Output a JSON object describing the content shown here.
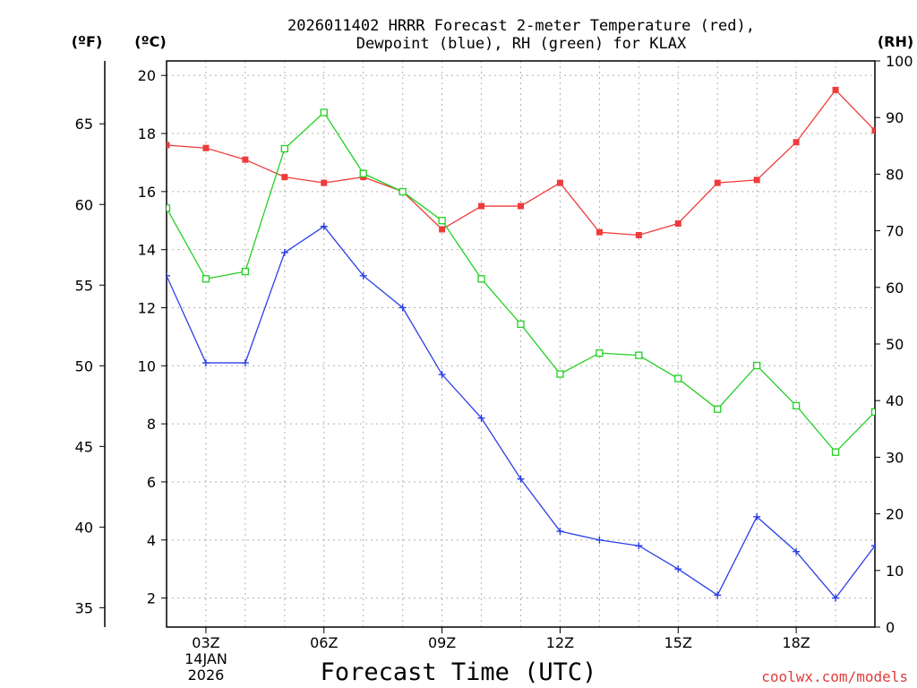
{
  "chart_data": {
    "type": "line",
    "title_line1": "2026011402 HRRR Forecast 2-meter Temperature (red),",
    "title_line2": "Dewpoint (blue), RH (green) for KLAX",
    "xlabel": "Forecast Time (UTC)",
    "credit": "coolwx.com/models",
    "x_tick_labels": [
      "03Z",
      "06Z",
      "09Z",
      "12Z",
      "15Z",
      "18Z"
    ],
    "x_tick_hours": [
      3,
      6,
      9,
      12,
      15,
      18
    ],
    "x_sublabel": [
      "14JAN",
      "2026"
    ],
    "xlim": [
      2,
      20
    ],
    "x_hours": [
      2,
      3,
      4,
      5,
      6,
      7,
      8,
      9,
      10,
      11,
      12,
      13,
      14,
      15,
      16,
      17,
      18,
      19,
      20
    ],
    "y_left_celsius": {
      "unit_label": "(ºC)",
      "ylim": [
        1,
        20.5
      ],
      "ticks": [
        2,
        4,
        6,
        8,
        10,
        12,
        14,
        16,
        18,
        20
      ]
    },
    "y_left_fahrenheit": {
      "unit_label": "(ºF)",
      "ticks": [
        35,
        40,
        45,
        50,
        55,
        60,
        65
      ]
    },
    "y_right_rh": {
      "unit_label": "(RH)",
      "ylim": [
        0,
        100
      ],
      "ticks": [
        0,
        10,
        20,
        30,
        40,
        50,
        60,
        70,
        80,
        90,
        100
      ]
    },
    "series": [
      {
        "name": "Temperature",
        "color": "#ef3b3b",
        "marker": "filled-square",
        "axis": "celsius",
        "values": [
          17.6,
          17.5,
          17.1,
          16.5,
          16.3,
          16.5,
          16.0,
          14.7,
          15.5,
          15.5,
          16.3,
          14.6,
          14.5,
          14.9,
          16.3,
          16.4,
          17.7,
          19.5,
          18.1
        ]
      },
      {
        "name": "Dewpoint",
        "color": "#2a3fe6",
        "marker": "plus",
        "axis": "celsius",
        "values": [
          13.1,
          10.1,
          10.1,
          13.9,
          14.8,
          13.1,
          12.0,
          9.7,
          8.2,
          6.1,
          4.3,
          4.0,
          3.8,
          3.0,
          2.1,
          4.8,
          3.6,
          2.0,
          3.8
        ]
      },
      {
        "name": "RH",
        "color": "#22d022",
        "marker": "open-square",
        "axis": "rh",
        "values": [
          74,
          61.5,
          62.8,
          84.5,
          90.9,
          80.1,
          76.9,
          71.8,
          61.5,
          53.5,
          44.7,
          48.4,
          48.0,
          43.9,
          38.5,
          46.2,
          39.1,
          30.9,
          38.0
        ]
      }
    ]
  }
}
